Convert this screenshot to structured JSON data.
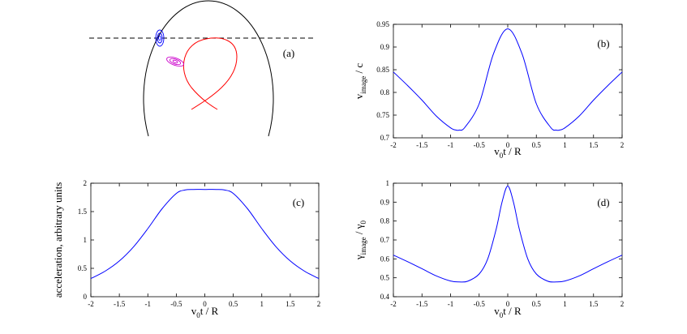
{
  "figure": {
    "panel_a": {
      "label": "(a)"
    }
  },
  "chart_data": [
    {
      "id": "b",
      "type": "line",
      "label": "(b)",
      "xlabel_parts": [
        "v",
        "0",
        "t / R"
      ],
      "ylabel_parts": [
        "v",
        "image",
        " / c"
      ],
      "xlim": [
        -2,
        2
      ],
      "ylim": [
        0.7,
        0.95
      ],
      "xticks": [
        -2,
        -1.5,
        -1,
        -0.5,
        0,
        0.5,
        1,
        1.5,
        2
      ],
      "xtick_labels": [
        "-2",
        "-1.5",
        "-1",
        "-0.5",
        "0",
        "0.5",
        "1",
        "1.5",
        "2"
      ],
      "yticks": [
        0.7,
        0.75,
        0.8,
        0.85,
        0.9,
        0.95
      ],
      "ytick_labels": [
        "0.7",
        "0.75",
        "0.8",
        "0.85",
        "0.9",
        "0.95"
      ],
      "line_color": "#0000ff",
      "x": [
        -2,
        -1.75,
        -1.5,
        -1.25,
        -1.0,
        -0.9,
        -0.85,
        -0.75,
        -0.5,
        -0.25,
        0,
        0.25,
        0.5,
        0.75,
        0.85,
        0.9,
        1.0,
        1.25,
        1.5,
        1.75,
        2
      ],
      "y": [
        0.845,
        0.815,
        0.783,
        0.748,
        0.722,
        0.717,
        0.717,
        0.723,
        0.775,
        0.885,
        0.94,
        0.885,
        0.775,
        0.723,
        0.717,
        0.717,
        0.722,
        0.748,
        0.783,
        0.815,
        0.845
      ]
    },
    {
      "id": "c",
      "type": "line",
      "label": "(c)",
      "xlabel_parts": [
        "v",
        "0",
        "t / R"
      ],
      "ylabel_parts": [
        "acceleration,  arbitrary units"
      ],
      "xlim": [
        -2,
        2
      ],
      "ylim": [
        0,
        2
      ],
      "xticks": [
        -2,
        -1.5,
        -1,
        -0.5,
        0,
        0.5,
        1,
        1.5,
        2
      ],
      "xtick_labels": [
        "-2",
        "-1.5",
        "-1",
        "-0.5",
        "0",
        "0.5",
        "1",
        "1.5",
        "2"
      ],
      "yticks": [
        0,
        0.5,
        1,
        1.5,
        2
      ],
      "ytick_labels": [
        "0",
        "0.5",
        "1",
        "1.5",
        "2"
      ],
      "line_color": "#0000ff",
      "x": [
        -2,
        -1.75,
        -1.5,
        -1.25,
        -1.0,
        -0.75,
        -0.5,
        -0.35,
        -0.2,
        0,
        0.2,
        0.35,
        0.5,
        0.75,
        1.0,
        1.25,
        1.5,
        1.75,
        2
      ],
      "y": [
        0.32,
        0.45,
        0.63,
        0.88,
        1.2,
        1.55,
        1.82,
        1.88,
        1.89,
        1.89,
        1.89,
        1.88,
        1.82,
        1.55,
        1.2,
        0.88,
        0.63,
        0.45,
        0.32
      ]
    },
    {
      "id": "d",
      "type": "line",
      "label": "(d)",
      "xlabel_parts": [
        "v",
        "0",
        "t / R"
      ],
      "ylabel_parts": [
        "γ",
        "image",
        " / γ",
        "0"
      ],
      "xlim": [
        -2,
        2
      ],
      "ylim": [
        0.4,
        1
      ],
      "xticks": [
        -2,
        -1.5,
        -1,
        -0.5,
        0,
        0.5,
        1,
        1.5,
        2
      ],
      "xtick_labels": [
        "-2",
        "-1.5",
        "-1",
        "-0.5",
        "0",
        "0.5",
        "1",
        "1.5",
        "2"
      ],
      "yticks": [
        0.4,
        0.5,
        0.6,
        0.7,
        0.8,
        0.9,
        1
      ],
      "ytick_labels": [
        "0.4",
        "0.5",
        "0.6",
        "0.7",
        "0.8",
        "0.9",
        "1"
      ],
      "line_color": "#0000ff",
      "x": [
        -2,
        -1.75,
        -1.5,
        -1.25,
        -1.0,
        -0.85,
        -0.7,
        -0.5,
        -0.35,
        -0.2,
        -0.1,
        0,
        0.1,
        0.2,
        0.35,
        0.5,
        0.7,
        0.85,
        1.0,
        1.25,
        1.5,
        1.75,
        2
      ],
      "y": [
        0.62,
        0.585,
        0.548,
        0.51,
        0.483,
        0.478,
        0.482,
        0.52,
        0.6,
        0.76,
        0.9,
        0.985,
        0.9,
        0.76,
        0.6,
        0.52,
        0.482,
        0.478,
        0.483,
        0.51,
        0.548,
        0.585,
        0.62
      ]
    }
  ]
}
